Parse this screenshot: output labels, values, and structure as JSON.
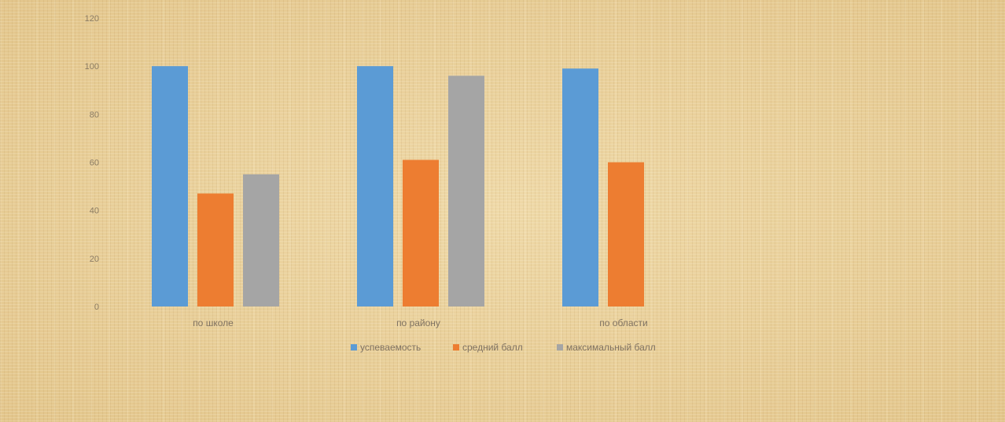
{
  "chart_data": {
    "type": "bar",
    "categories": [
      "по школе",
      "по району",
      "по области"
    ],
    "series": [
      {
        "name": "успеваемость",
        "color": "#5b9bd5",
        "values": [
          100,
          100,
          99
        ]
      },
      {
        "name": "средний балл",
        "color": "#ed7d31",
        "values": [
          47,
          61,
          60
        ]
      },
      {
        "name": "максимальный балл",
        "color": "#a5a5a5",
        "values": [
          55,
          96,
          null
        ]
      }
    ],
    "ylim": [
      0,
      120
    ],
    "yticks": [
      0,
      20,
      40,
      60,
      80,
      100,
      120
    ],
    "grid": false,
    "legend_position": "bottom"
  }
}
